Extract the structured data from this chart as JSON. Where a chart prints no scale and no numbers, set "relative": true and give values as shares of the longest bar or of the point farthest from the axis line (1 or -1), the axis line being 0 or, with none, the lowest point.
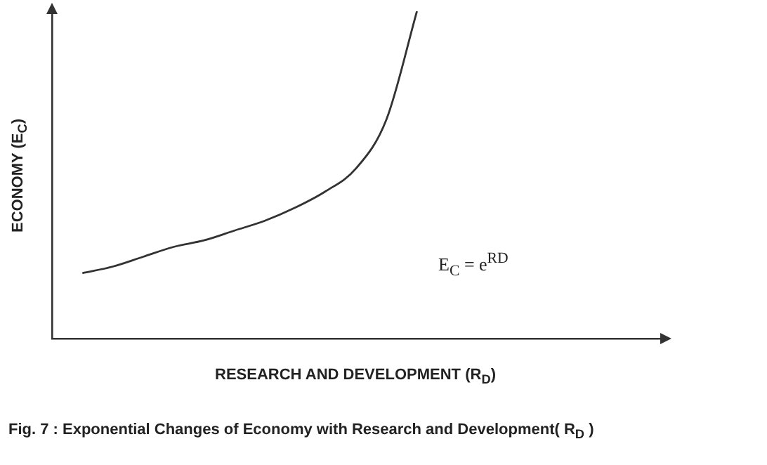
{
  "chart_data": {
    "type": "line",
    "title": "Fig. 7 : Exponential Changes of Economy with Research and Development( R$_{D}$ )",
    "xlabel": "RESEARCH AND DEVELOPMENT (R$_{D}$)",
    "ylabel": "ECONOMY (E$_{C}$)",
    "annotations": [
      "E$_{C}$ = e$^{RD}$"
    ],
    "relative": true,
    "categories": [
      null,
      null,
      null,
      null,
      null,
      null,
      null,
      null,
      null,
      null,
      null,
      null,
      null,
      null,
      null,
      null,
      null,
      null,
      null,
      null,
      null
    ],
    "series": [
      {
        "color": "#333333",
        "values": [
          null,
          0.2,
          0.22,
          0.25,
          0.28,
          0.3,
          0.33,
          0.36,
          0.4,
          0.45,
          0.52,
          0.67,
          1.0,
          null,
          null,
          null,
          null,
          null,
          null,
          null,
          null
        ]
      }
    ],
    "grid": false,
    "legend": false,
    "marker": "none",
    "line_style": "solid"
  }
}
